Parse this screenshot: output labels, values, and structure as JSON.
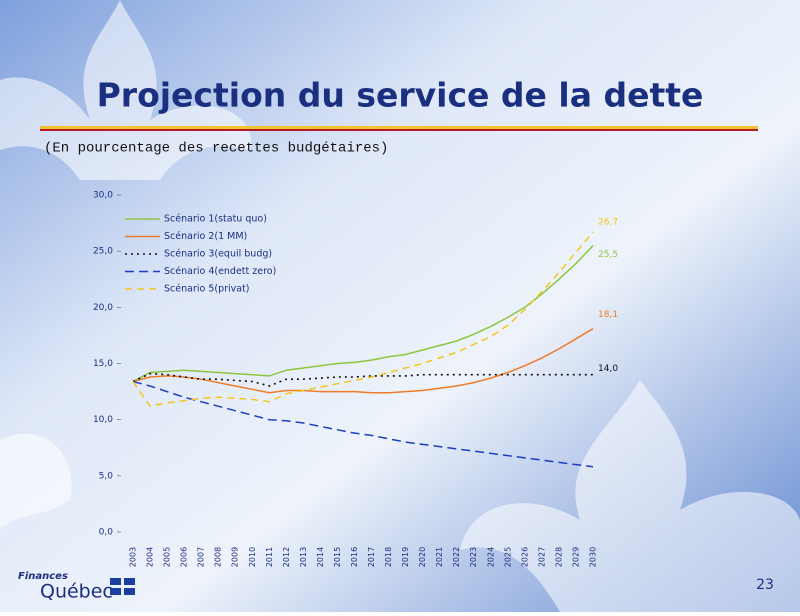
{
  "chart_data": {
    "type": "line",
    "title": "Projection du service de la dette",
    "subtitle": "(En pourcentage des recettes budgétaires)",
    "categories": [
      "2003",
      "2004",
      "2005",
      "2006",
      "2007",
      "2008",
      "2009",
      "2010",
      "2011",
      "2012",
      "2013",
      "2014",
      "2015",
      "2016",
      "2017",
      "2018",
      "2019",
      "2020",
      "2021",
      "2022",
      "2023",
      "2024",
      "2025",
      "2026",
      "2027",
      "2028",
      "2029",
      "2030"
    ],
    "ylim": [
      0,
      30
    ],
    "yticks": [
      {
        "value": 0,
        "label": "0,0"
      },
      {
        "value": 5,
        "label": "5,0"
      },
      {
        "value": 10,
        "label": "10,0"
      },
      {
        "value": 15,
        "label": "15,0"
      },
      {
        "value": 20,
        "label": "20,0"
      },
      {
        "value": 25,
        "label": "25,0"
      },
      {
        "value": 30,
        "label": "30,0"
      }
    ],
    "series": [
      {
        "name": "Scénario 1(statu quo)",
        "color": "#8cc63f",
        "dash": "none",
        "values": [
          13.4,
          14.2,
          14.3,
          14.4,
          14.3,
          14.2,
          14.1,
          14.0,
          13.9,
          14.4,
          14.6,
          14.8,
          15.0,
          15.1,
          15.3,
          15.6,
          15.8,
          16.2,
          16.6,
          17.0,
          17.6,
          18.3,
          19.1,
          20.0,
          21.2,
          22.5,
          23.9,
          25.5
        ],
        "value_labels": [
          null,
          null,
          null,
          null,
          null,
          null,
          null,
          null,
          null,
          null,
          null,
          null,
          null,
          null,
          null,
          null,
          null,
          null,
          null,
          null,
          null,
          null,
          null,
          null,
          null,
          null,
          null,
          "25,5"
        ]
      },
      {
        "name": "Scénario 2(1 MM)",
        "color": "#f07c28",
        "dash": "none",
        "values": [
          13.4,
          13.8,
          13.9,
          13.8,
          13.6,
          13.3,
          13.0,
          12.7,
          12.4,
          12.6,
          12.6,
          12.5,
          12.5,
          12.5,
          12.4,
          12.4,
          12.5,
          12.6,
          12.8,
          13.0,
          13.3,
          13.7,
          14.2,
          14.8,
          15.5,
          16.3,
          17.2,
          18.1
        ],
        "value_labels": [
          null,
          null,
          null,
          null,
          null,
          null,
          null,
          null,
          null,
          null,
          null,
          null,
          null,
          null,
          null,
          null,
          null,
          null,
          null,
          null,
          null,
          null,
          null,
          null,
          null,
          null,
          null,
          "18,1"
        ]
      },
      {
        "name": "Scénario 3(equil budg)",
        "color": "#111111",
        "dash": "2 4",
        "values": [
          13.4,
          14.1,
          14.0,
          13.8,
          13.6,
          13.6,
          13.5,
          13.4,
          13.0,
          13.6,
          13.6,
          13.7,
          13.8,
          13.8,
          13.9,
          13.9,
          13.9,
          14.0,
          14.0,
          14.0,
          14.0,
          14.0,
          14.0,
          14.0,
          14.0,
          14.0,
          14.0,
          14.0
        ],
        "value_labels": [
          null,
          null,
          null,
          null,
          null,
          null,
          null,
          null,
          null,
          null,
          null,
          null,
          null,
          null,
          null,
          null,
          null,
          null,
          null,
          null,
          null,
          null,
          null,
          null,
          null,
          null,
          null,
          "14,0"
        ]
      },
      {
        "name": "Scénario 4(endett zero)",
        "color": "#1a3fc0",
        "dash": "9 5",
        "values": [
          13.4,
          13.0,
          12.5,
          12.0,
          11.6,
          11.2,
          10.8,
          10.4,
          10.0,
          9.9,
          9.7,
          9.4,
          9.1,
          8.8,
          8.6,
          8.3,
          8.0,
          7.8,
          7.6,
          7.4,
          7.2,
          7.0,
          6.8,
          6.6,
          6.4,
          6.2,
          6.0,
          5.8
        ]
      },
      {
        "name": "Scénario 5(privat)",
        "color": "#f5c518",
        "dash": "7 5",
        "values": [
          13.4,
          11.2,
          11.5,
          11.7,
          11.9,
          12.0,
          11.9,
          11.8,
          11.6,
          12.3,
          12.6,
          12.9,
          13.2,
          13.5,
          13.8,
          14.2,
          14.6,
          15.0,
          15.5,
          16.0,
          16.7,
          17.4,
          18.4,
          19.8,
          21.4,
          23.1,
          24.9,
          26.7
        ],
        "value_labels": [
          null,
          null,
          null,
          null,
          null,
          null,
          null,
          null,
          null,
          null,
          null,
          null,
          null,
          null,
          null,
          null,
          null,
          null,
          null,
          null,
          null,
          null,
          null,
          null,
          null,
          null,
          null,
          "26,7"
        ]
      }
    ]
  },
  "footer": {
    "brand_small": "Finances",
    "brand": "Québec",
    "page": "23"
  }
}
